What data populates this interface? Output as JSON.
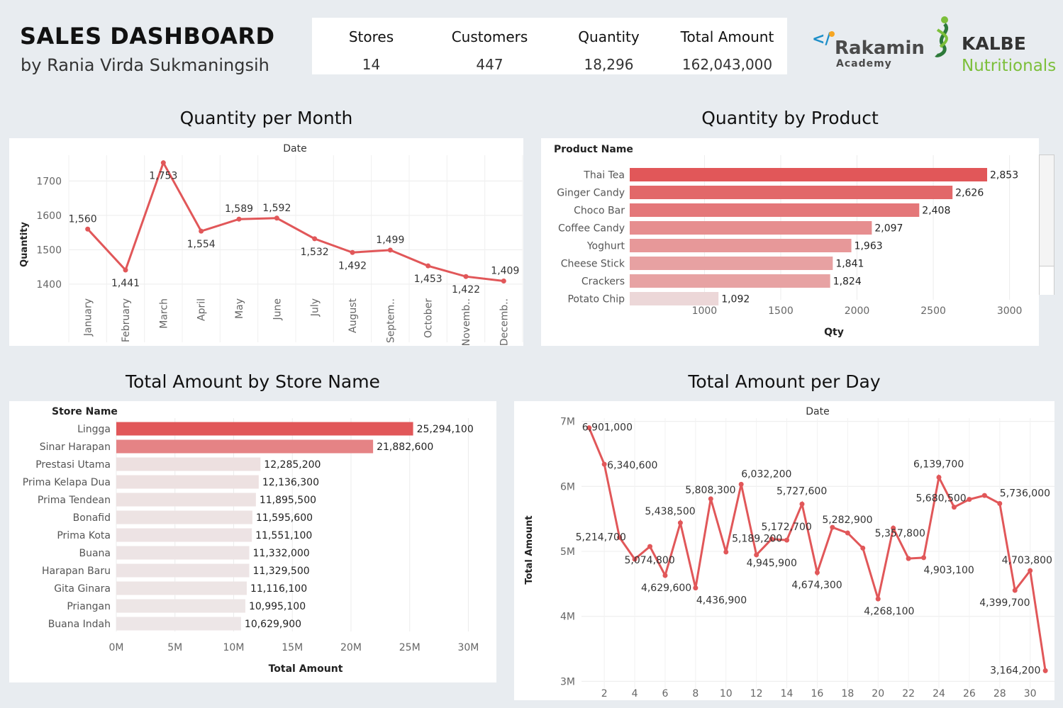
{
  "header": {
    "title": "SALES DASHBOARD",
    "subtitle": "by Rania Virda Sukmaningsih"
  },
  "kpis": [
    {
      "label": "Stores",
      "value": "14"
    },
    {
      "label": "Customers",
      "value": "447"
    },
    {
      "label": "Quantity",
      "value": "18,296"
    },
    {
      "label": "Total Amount",
      "value": "162,043,000"
    }
  ],
  "logos": {
    "rakamin_name": "Rakamin",
    "rakamin_sub": "Academy",
    "rakamin_mark": "</",
    "kalbe_name": "KALBE",
    "kalbe_sub": "Nutritionals"
  },
  "colors": {
    "accent": "#e15759",
    "bar_light": "#f0dede",
    "bar_lightest": "#eeeeee"
  },
  "chart_data": [
    {
      "id": "qty_month",
      "type": "line",
      "title": "Quantity per Month",
      "top_label": "Date",
      "xlabel": "",
      "ylabel": "Quantity",
      "categories": [
        "January",
        "February",
        "March",
        "April",
        "May",
        "June",
        "July",
        "August",
        "Septem..",
        "October",
        "Novemb..",
        "Decemb.."
      ],
      "values": [
        1560,
        1441,
        1753,
        1554,
        1589,
        1592,
        1532,
        1492,
        1499,
        1453,
        1422,
        1409
      ],
      "labels": [
        "1,560",
        "1,441",
        "1,753",
        "1,554",
        "1,589",
        "1,592",
        "1,532",
        "1,492",
        "1,499",
        "1,453",
        "1,422",
        "1,409"
      ],
      "yticks": [
        1400,
        1500,
        1600,
        1700
      ],
      "ylim": [
        1375,
        1775
      ],
      "grid": true
    },
    {
      "id": "qty_product",
      "type": "bar",
      "orientation": "horizontal",
      "title": "Quantity by Product",
      "category_header": "Product Name",
      "xlabel": "Qty",
      "categories": [
        "Thai Tea",
        "Ginger Candy",
        "Choco Bar",
        "Coffee Candy",
        "Yoghurt",
        "Cheese Stick",
        "Crackers",
        "Potato Chip"
      ],
      "values": [
        2853,
        2626,
        2408,
        2097,
        1963,
        1841,
        1824,
        1092
      ],
      "labels": [
        "2,853",
        "2,626",
        "2,408",
        "2,097",
        "1,963",
        "1,841",
        "1,824",
        "1,092"
      ],
      "xticks": [
        1000,
        1500,
        2000,
        2500,
        3000
      ],
      "xlim": [
        510,
        3090
      ],
      "grid": true
    },
    {
      "id": "amount_store",
      "type": "bar",
      "orientation": "horizontal",
      "title": "Total Amount by Store Name",
      "category_header": "Store Name",
      "xlabel": "Total Amount",
      "categories": [
        "Lingga",
        "Sinar Harapan",
        "Prestasi Utama",
        "Prima Kelapa Dua",
        "Prima Tendean",
        "Bonafid",
        "Prima Kota",
        "Buana",
        "Harapan Baru",
        "Gita Ginara",
        "Priangan",
        "Buana Indah"
      ],
      "values": [
        25294100,
        21882600,
        12285200,
        12136300,
        11895500,
        11595600,
        11551100,
        11332000,
        11329500,
        11116100,
        10995100,
        10629900
      ],
      "labels": [
        "25,294,100",
        "21,882,600",
        "12,285,200",
        "12,136,300",
        "11,895,500",
        "11,595,600",
        "11,551,100",
        "11,332,000",
        "11,329,500",
        "11,116,100",
        "10,995,100",
        "10,629,900"
      ],
      "xticks": [
        0,
        5000000,
        10000000,
        15000000,
        20000000,
        25000000,
        30000000
      ],
      "xtick_labels": [
        "0M",
        "5M",
        "10M",
        "15M",
        "20M",
        "25M",
        "30M"
      ],
      "xlim": [
        0,
        31000000
      ],
      "grid": true
    },
    {
      "id": "amount_day",
      "type": "line",
      "title": "Total Amount per Day",
      "top_label": "Date",
      "xlabel": "",
      "ylabel": "Total Amount",
      "x": [
        1,
        2,
        3,
        4,
        5,
        6,
        7,
        8,
        9,
        10,
        11,
        12,
        13,
        14,
        15,
        16,
        17,
        18,
        19,
        20,
        21,
        22,
        23,
        24,
        25,
        26,
        27,
        28,
        29,
        30,
        31
      ],
      "values": [
        6901000,
        6340600,
        5214700,
        4880000,
        5074800,
        4629600,
        5438500,
        4436900,
        5808300,
        4990000,
        6032200,
        4945900,
        5189200,
        5172700,
        5727600,
        4674300,
        5370000,
        5282900,
        5050000,
        4268100,
        5357800,
        4890000,
        4903100,
        6139700,
        5680500,
        5800000,
        5860000,
        5736000,
        4399700,
        4703800,
        3164200
      ],
      "labels": [
        "6,901,000",
        "6,340,600",
        "5,214,700",
        "",
        "5,074,800",
        "4,629,600",
        "5,438,500",
        "4,436,900",
        "5,808,300",
        "",
        "6,032,200",
        "4,945,900",
        "5,189,200",
        "5,172,700",
        "5,727,600",
        "4,674,300",
        "",
        "5,282,900",
        "",
        "4,268,100",
        "5,357,800",
        "",
        "4,903,100",
        "6,139,700",
        "5,680,500",
        "",
        "",
        "5,736,000",
        "4,399,700",
        "4,703,800",
        "3,164,200"
      ],
      "xticks": [
        2,
        4,
        6,
        8,
        10,
        12,
        14,
        16,
        18,
        20,
        22,
        24,
        26,
        28,
        30
      ],
      "yticks": [
        3000000,
        4000000,
        5000000,
        6000000,
        7000000
      ],
      "ytick_labels": [
        "3M",
        "4M",
        "5M",
        "6M",
        "7M"
      ],
      "ylim": [
        2950000,
        7050000
      ],
      "grid": true
    }
  ]
}
